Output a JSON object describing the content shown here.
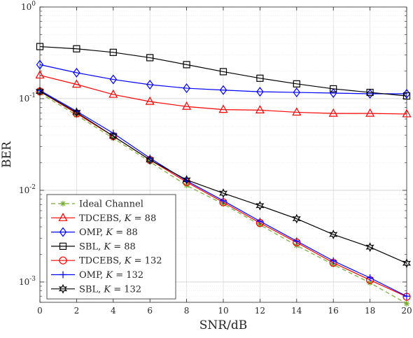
{
  "chart_data": {
    "type": "line",
    "xlabel": "SNR/dB",
    "ylabel": "BER",
    "xlim": [
      0,
      20
    ],
    "ylim": [
      0.0006,
      1
    ],
    "yscale": "log",
    "grid": true,
    "legend_position": "bottom-left",
    "x_ticks": [
      "0",
      "2",
      "4",
      "6",
      "8",
      "10",
      "12",
      "14",
      "16",
      "18",
      "20"
    ],
    "y_ticks": [
      {
        "base": "10",
        "exp": "0"
      },
      {
        "base": "10",
        "exp": "-1"
      },
      {
        "base": "10",
        "exp": "-2"
      },
      {
        "base": "10",
        "exp": "-3"
      }
    ],
    "x": [
      0,
      2,
      4,
      6,
      8,
      10,
      12,
      14,
      16,
      18,
      20
    ],
    "series": [
      {
        "name": "Ideal Channel",
        "name_parts": [
          {
            "t": "Ideal Channel"
          }
        ],
        "color": "#77ac30",
        "marker": "asterisk",
        "dash": "6,4",
        "values": [
          0.115,
          0.066,
          0.037,
          0.0205,
          0.0113,
          0.0071,
          0.0042,
          0.0025,
          0.00155,
          0.00098,
          0.00058
        ]
      },
      {
        "name": "TDCEBS, K = 88",
        "name_parts": [
          {
            "t": "TDCEBS, "
          },
          {
            "t": "K",
            "i": true
          },
          {
            "t": " = 88"
          }
        ],
        "color": "#ff0000",
        "marker": "triangle",
        "values": [
          0.18,
          0.143,
          0.111,
          0.093,
          0.082,
          0.076,
          0.075,
          0.071,
          0.069,
          0.069,
          0.068
        ]
      },
      {
        "name": "OMP, K = 88",
        "name_parts": [
          {
            "t": "OMP, "
          },
          {
            "t": "K",
            "i": true
          },
          {
            "t": " = 88"
          }
        ],
        "color": "#0000ff",
        "marker": "diamond",
        "values": [
          0.235,
          0.192,
          0.162,
          0.142,
          0.13,
          0.124,
          0.119,
          0.117,
          0.115,
          0.113,
          0.113
        ]
      },
      {
        "name": "SBL, K = 88",
        "name_parts": [
          {
            "t": "SBL, "
          },
          {
            "t": "K",
            "i": true
          },
          {
            "t": " = 88"
          }
        ],
        "color": "#000000",
        "marker": "square",
        "values": [
          0.37,
          0.35,
          0.32,
          0.28,
          0.235,
          0.197,
          0.167,
          0.145,
          0.128,
          0.117,
          0.107
        ]
      },
      {
        "name": "TDCEBS, K = 132",
        "name_parts": [
          {
            "t": "TDCEBS, "
          },
          {
            "t": "K",
            "i": true
          },
          {
            "t": " = 132"
          }
        ],
        "color": "#ff0000",
        "marker": "circle",
        "values": [
          0.12,
          0.069,
          0.039,
          0.0215,
          0.0123,
          0.0074,
          0.0044,
          0.0027,
          0.00162,
          0.00105,
          0.00069
        ]
      },
      {
        "name": "OMP, K = 132",
        "name_parts": [
          {
            "t": "OMP, "
          },
          {
            "t": "K",
            "i": true
          },
          {
            "t": " = 132"
          }
        ],
        "color": "#0000ff",
        "marker": "plus",
        "values": [
          0.123,
          0.073,
          0.042,
          0.0225,
          0.0127,
          0.0077,
          0.0046,
          0.0028,
          0.0017,
          0.00111,
          0.0007
        ]
      },
      {
        "name": "SBL, K = 132",
        "name_parts": [
          {
            "t": "SBL, "
          },
          {
            "t": "K",
            "i": true
          },
          {
            "t": " = 132"
          }
        ],
        "color": "#000000",
        "marker": "hexagram",
        "values": [
          0.12,
          0.071,
          0.039,
          0.0215,
          0.013,
          0.0093,
          0.0068,
          0.0049,
          0.0033,
          0.0024,
          0.0016
        ]
      }
    ]
  }
}
